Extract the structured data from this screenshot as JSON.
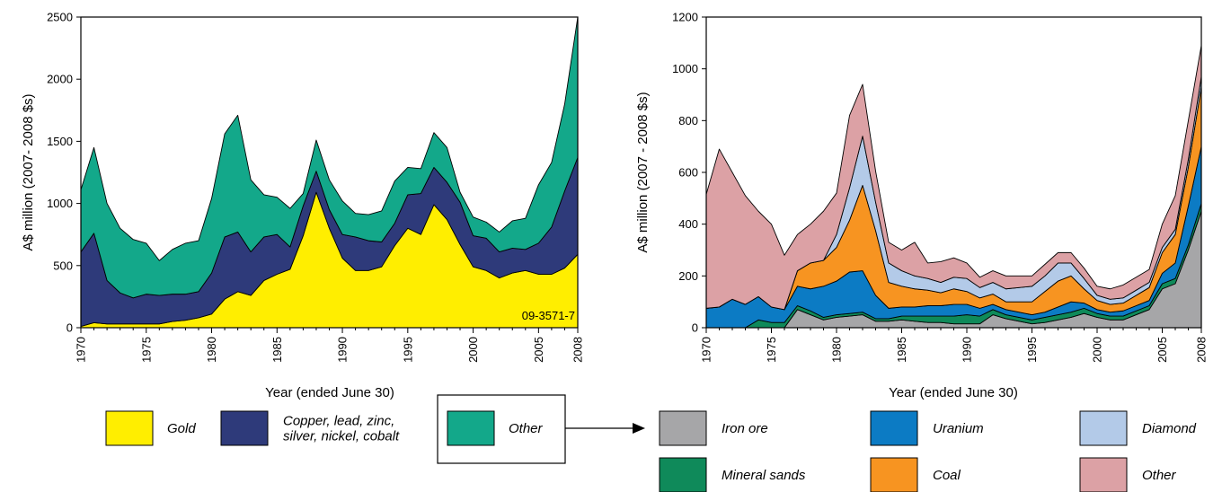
{
  "charts": {
    "left": {
      "ylabel": "A$ million (2007- 2008 $s)",
      "xlabel": "Year (ended June 30)",
      "note": "09-3571-7"
    },
    "right": {
      "ylabel": "A$ million (2007 - 2008 $s)",
      "xlabel": "Year (ended June 30)"
    }
  },
  "legend_left": [
    {
      "label": "Gold",
      "color": "#ffee00"
    },
    {
      "label": "Copper, lead, zinc,\nsilver, nickel, cobalt",
      "color": "#2e3a7a"
    },
    {
      "label": "Other",
      "color": "#13a88a"
    }
  ],
  "legend_right": [
    {
      "label": "Iron ore",
      "color": "#a6a6a8"
    },
    {
      "label": "Uranium",
      "color": "#0c7bc4"
    },
    {
      "label": "Diamond",
      "color": "#b3cae8"
    },
    {
      "label": "Mineral sands",
      "color": "#0f8a5a"
    },
    {
      "label": "Coal",
      "color": "#f79421"
    },
    {
      "label": "Other",
      "color": "#dca1a5"
    }
  ],
  "chart_data": [
    {
      "type": "area",
      "stacked": true,
      "x": [
        1970,
        1971,
        1972,
        1973,
        1974,
        1975,
        1976,
        1977,
        1978,
        1979,
        1980,
        1981,
        1982,
        1983,
        1984,
        1985,
        1986,
        1987,
        1988,
        1989,
        1990,
        1991,
        1992,
        1993,
        1994,
        1995,
        1996,
        1997,
        1998,
        1999,
        2000,
        2001,
        2002,
        2003,
        2004,
        2005,
        2006,
        2007,
        2008
      ],
      "xticks": [
        1970,
        1975,
        1980,
        1985,
        1990,
        1995,
        2000,
        2005,
        2008
      ],
      "ylim": [
        0,
        2500
      ],
      "yticks": [
        0,
        500,
        1000,
        1500,
        2000,
        2500
      ],
      "xlabel": "Year (ended June 30)",
      "ylabel": "A$ million (2007- 2008 $s)",
      "series": [
        {
          "name": "Gold",
          "color": "#ffee00",
          "values": [
            10,
            40,
            30,
            30,
            30,
            30,
            30,
            50,
            60,
            80,
            110,
            230,
            290,
            260,
            380,
            430,
            470,
            740,
            1090,
            800,
            560,
            460,
            460,
            490,
            660,
            800,
            750,
            990,
            870,
            670,
            490,
            460,
            400,
            440,
            460,
            430,
            430,
            480,
            590
          ]
        },
        {
          "name": "Copper, lead, zinc,\nsilver, nickel, cobalt",
          "color": "#2e3a7a",
          "values": [
            600,
            720,
            350,
            250,
            210,
            240,
            230,
            220,
            210,
            210,
            330,
            500,
            480,
            350,
            350,
            320,
            180,
            240,
            170,
            150,
            190,
            270,
            240,
            200,
            180,
            270,
            330,
            300,
            300,
            340,
            250,
            260,
            210,
            200,
            170,
            250,
            380,
            620,
            780
          ]
        },
        {
          "name": "Other",
          "color": "#13a88a",
          "values": [
            500,
            690,
            620,
            520,
            470,
            410,
            280,
            360,
            410,
            410,
            600,
            830,
            940,
            580,
            340,
            300,
            310,
            100,
            250,
            240,
            270,
            190,
            210,
            250,
            340,
            220,
            200,
            280,
            280,
            80,
            150,
            130,
            160,
            220,
            250,
            470,
            520,
            700,
            1130
          ]
        }
      ]
    },
    {
      "type": "area",
      "stacked": true,
      "x": [
        1970,
        1971,
        1972,
        1973,
        1974,
        1975,
        1976,
        1977,
        1978,
        1979,
        1980,
        1981,
        1982,
        1983,
        1984,
        1985,
        1986,
        1987,
        1988,
        1989,
        1990,
        1991,
        1992,
        1993,
        1994,
        1995,
        1996,
        1997,
        1998,
        1999,
        2000,
        2001,
        2002,
        2003,
        2004,
        2005,
        2006,
        2007,
        2008
      ],
      "xticks": [
        1970,
        1975,
        1980,
        1985,
        1990,
        1995,
        2000,
        2005,
        2008
      ],
      "ylim": [
        0,
        1200
      ],
      "yticks": [
        0,
        200,
        400,
        600,
        800,
        1000,
        1200
      ],
      "xlabel": "Year (ended June 30)",
      "ylabel": "A$ million (2007 - 2008 $s)",
      "series": [
        {
          "name": "Iron ore",
          "color": "#a6a6a8",
          "values": [
            0,
            0,
            0,
            0,
            0,
            0,
            0,
            70,
            50,
            30,
            40,
            45,
            50,
            25,
            25,
            30,
            25,
            20,
            20,
            15,
            15,
            15,
            50,
            35,
            25,
            15,
            20,
            30,
            40,
            55,
            40,
            30,
            30,
            50,
            70,
            150,
            170,
            300,
            450
          ]
        },
        {
          "name": "Mineral sands",
          "color": "#0f8a5a",
          "values": [
            0,
            0,
            0,
            0,
            30,
            20,
            20,
            15,
            15,
            10,
            10,
            10,
            10,
            10,
            10,
            15,
            20,
            25,
            25,
            30,
            35,
            30,
            20,
            15,
            15,
            15,
            20,
            20,
            20,
            20,
            15,
            15,
            15,
            15,
            15,
            20,
            20,
            20,
            30
          ]
        },
        {
          "name": "Uranium",
          "color": "#0c7bc4",
          "values": [
            75,
            80,
            110,
            90,
            90,
            60,
            50,
            75,
            85,
            120,
            130,
            160,
            160,
            90,
            40,
            35,
            35,
            40,
            40,
            45,
            40,
            30,
            20,
            20,
            20,
            20,
            20,
            30,
            40,
            20,
            15,
            15,
            20,
            20,
            20,
            40,
            60,
            150,
            220
          ]
        },
        {
          "name": "Coal",
          "color": "#f79421",
          "values": [
            0,
            0,
            0,
            0,
            0,
            0,
            0,
            60,
            100,
            100,
            130,
            200,
            330,
            250,
            100,
            80,
            70,
            60,
            50,
            60,
            50,
            40,
            40,
            30,
            40,
            50,
            80,
            100,
            100,
            55,
            35,
            30,
            30,
            40,
            50,
            80,
            110,
            150,
            230
          ]
        },
        {
          "name": "Diamond",
          "color": "#b3cae8",
          "values": [
            0,
            0,
            0,
            0,
            0,
            0,
            0,
            0,
            0,
            0,
            50,
            125,
            190,
            110,
            75,
            60,
            50,
            45,
            40,
            45,
            50,
            40,
            45,
            50,
            55,
            60,
            60,
            70,
            50,
            40,
            20,
            20,
            20,
            20,
            20,
            20,
            20,
            30,
            40
          ]
        },
        {
          "name": "Other",
          "color": "#dca1a5",
          "values": [
            440,
            610,
            490,
            420,
            330,
            320,
            210,
            140,
            150,
            190,
            160,
            280,
            200,
            120,
            80,
            80,
            130,
            60,
            80,
            75,
            60,
            40,
            45,
            50,
            45,
            40,
            45,
            40,
            40,
            40,
            35,
            40,
            50,
            50,
            50,
            90,
            130,
            150,
            120
          ]
        }
      ]
    }
  ]
}
